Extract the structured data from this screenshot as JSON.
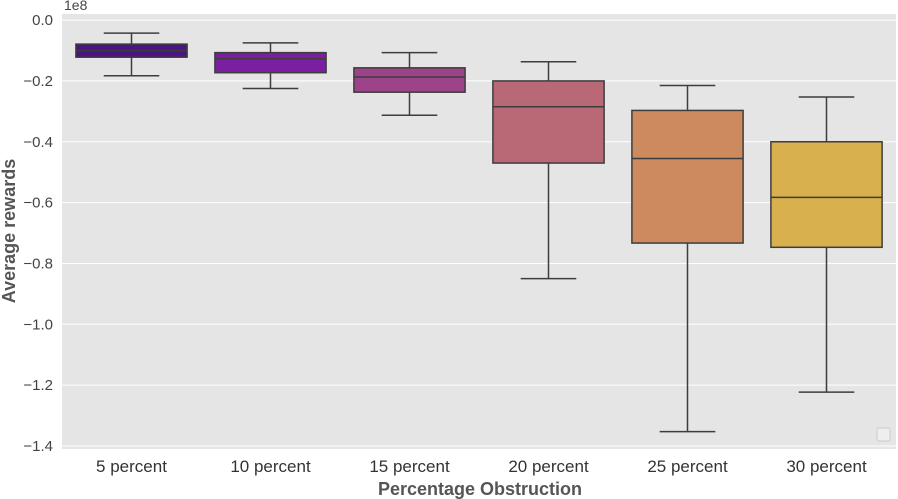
{
  "chart_data": {
    "type": "box",
    "title": "",
    "xlabel": "Percentage Obstruction",
    "ylabel": "Average rewards",
    "y_offset_label": "1e8",
    "ylim": [
      -1.41,
      0.02
    ],
    "yticks": [
      0.0,
      -0.2,
      -0.4,
      -0.6,
      -0.8,
      -1.0,
      -1.2,
      -1.4
    ],
    "ytick_labels": [
      "0.0",
      "−0.2",
      "−0.4",
      "−0.6",
      "−0.8",
      "−1.0",
      "−1.2",
      "−1.4"
    ],
    "grid": true,
    "legend": "empty box at bottom-right",
    "categories": [
      "5 percent",
      "10 percent",
      "15 percent",
      "20 percent",
      "25 percent",
      "30 percent"
    ],
    "boxes": [
      {
        "category": "5 percent",
        "whisker_high": -0.043,
        "q3": -0.079,
        "median": -0.1,
        "q1": -0.122,
        "whisker_low": -0.183,
        "color": "#4a1486"
      },
      {
        "category": "10 percent",
        "whisker_high": -0.075,
        "q3": -0.107,
        "median": -0.127,
        "q1": -0.173,
        "whisker_low": -0.225,
        "color": "#7b1fa2"
      },
      {
        "category": "15 percent",
        "whisker_high": -0.107,
        "q3": -0.157,
        "median": -0.187,
        "q1": -0.237,
        "whisker_low": -0.313,
        "color": "#9c4389"
      },
      {
        "category": "20 percent",
        "whisker_high": -0.137,
        "q3": -0.2,
        "median": -0.285,
        "q1": -0.47,
        "whisker_low": -0.85,
        "color": "#b96875"
      },
      {
        "category": "25 percent",
        "whisker_high": -0.215,
        "q3": -0.297,
        "median": -0.455,
        "q1": -0.733,
        "whisker_low": -1.353,
        "color": "#cc8a5e"
      },
      {
        "category": "30 percent",
        "whisker_high": -0.253,
        "q3": -0.4,
        "median": -0.583,
        "q1": -0.747,
        "whisker_low": -1.223,
        "color": "#d9b04e"
      }
    ]
  }
}
